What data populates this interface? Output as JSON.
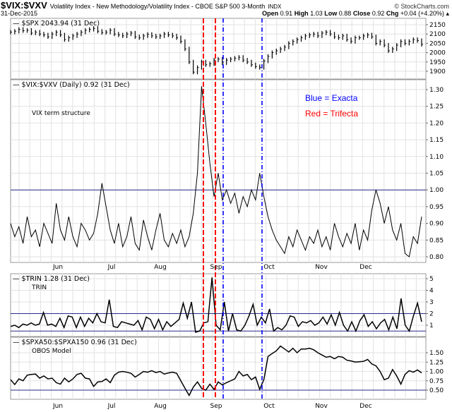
{
  "header": {
    "symbol": "$VIX:$VXV",
    "description": "Volatility Index - New Methodology/Volatility Index - CBOE S&P 500 3-Month",
    "exchange": "INDX",
    "brand": "© StockCharts.com",
    "date": "31-Dec-2015",
    "open_label": "Open",
    "open": "0.91",
    "high_label": "High",
    "high": "1.03",
    "low_label": "Low",
    "low": "0.88",
    "close_label": "Close",
    "close": "0.92",
    "chg_label": "Chg",
    "chg": "+0.04 (+4.20%)"
  },
  "colors": {
    "price": "#000000",
    "reference_line": "#2a2a8a",
    "trifecta": "#ff0000",
    "exacta": "#0000ff",
    "grid": "#e2e2e2"
  },
  "annotations": {
    "blue": "Blue = Exacta",
    "red": "Red = Trifecta"
  },
  "months": [
    "Jun",
    "Jul",
    "Aug",
    "Sep",
    "Oct",
    "Nov",
    "Dec"
  ],
  "chart_data": [
    {
      "type": "line",
      "panel": "spx",
      "legend": "$SPX 2043.94 (31 Dec)",
      "ylim": [
        1880,
        2160
      ],
      "yticks": [
        "2150",
        "2100",
        "2050",
        "2000",
        "1950",
        "1900"
      ],
      "values": [
        2110,
        2115,
        2125,
        2118,
        2120,
        2105,
        2110,
        2100,
        2095,
        2085,
        2100,
        2110,
        2095,
        2070,
        2080,
        2090,
        2100,
        2110,
        2120,
        2125,
        2130,
        2115,
        2108,
        2110,
        2120,
        2100,
        2095,
        2090,
        2100,
        2105,
        2085,
        2080,
        2090,
        2098,
        2090,
        2085,
        2090,
        2100,
        2095,
        2090,
        2080,
        2060,
        2020,
        1950,
        1895,
        1920,
        1950,
        1935,
        1940,
        1960,
        1965,
        1945,
        1960,
        1965,
        1970,
        1975,
        1960,
        1950,
        1935,
        1925,
        1920,
        1955,
        1980,
        2000,
        2010,
        2020,
        2030,
        2050,
        2060,
        2070,
        2080,
        2090,
        2095,
        2100,
        2090,
        2105,
        2110,
        2100,
        2085,
        2080,
        2090,
        2070,
        2060,
        2080,
        2080,
        2090,
        2095,
        2085,
        2050,
        2060,
        2040,
        2010,
        2020,
        2040,
        2060,
        2050,
        2060,
        2070,
        2065,
        2044
      ]
    },
    {
      "type": "line",
      "panel": "vix_vxv",
      "legend": "$VIX:$VXV (Daily) 0.92 (31 Dec)",
      "label": "VIX term structure",
      "ylim": [
        0.78,
        1.33
      ],
      "yticks": [
        "1.30",
        "1.25",
        "1.20",
        "1.15",
        "1.10",
        "1.05",
        "1.00",
        "0.95",
        "0.90",
        "0.85",
        "0.80"
      ],
      "reference": 1.0,
      "values": [
        0.9,
        0.86,
        0.89,
        0.84,
        0.92,
        0.86,
        0.88,
        0.83,
        0.9,
        0.87,
        0.84,
        0.96,
        0.88,
        0.85,
        0.92,
        0.86,
        0.83,
        0.9,
        0.88,
        0.85,
        0.87,
        0.93,
        1.02,
        0.95,
        0.88,
        0.84,
        0.9,
        0.83,
        0.86,
        0.92,
        0.84,
        0.82,
        0.91,
        0.86,
        0.82,
        0.88,
        0.93,
        0.85,
        0.83,
        0.87,
        0.84,
        0.88,
        0.83,
        0.86,
        0.93,
        1.05,
        1.31,
        1.2,
        1.08,
        0.98,
        1.05,
        0.97,
        1.0,
        0.96,
        0.99,
        0.93,
        0.98,
        0.95,
        1.0,
        0.97,
        1.05,
        0.98,
        0.92,
        0.88,
        0.85,
        0.83,
        0.81,
        0.86,
        0.83,
        0.88,
        0.85,
        0.82,
        0.86,
        0.84,
        0.88,
        0.83,
        0.86,
        0.82,
        0.9,
        0.86,
        0.83,
        0.87,
        0.84,
        0.9,
        0.82,
        0.88,
        0.85,
        0.94,
        1.0,
        0.96,
        0.9,
        0.95,
        0.88,
        0.85,
        0.9,
        0.81,
        0.8,
        0.86,
        0.84,
        0.92
      ]
    },
    {
      "type": "line",
      "panel": "trin",
      "legend": "$TRIN 1.28 (31 Dec)",
      "label": "TRIN",
      "ylim": [
        0,
        5.3
      ],
      "yticks": [
        "5",
        "4",
        "3",
        "2",
        "1"
      ],
      "reference": [
        2,
        0.5
      ],
      "values": [
        0.9,
        1.0,
        0.8,
        1.1,
        1.0,
        1.2,
        1.0,
        1.1,
        2.1,
        1.0,
        1.1,
        0.9,
        1.6,
        0.8,
        1.8,
        1.7,
        0.8,
        1.7,
        0.9,
        1.6,
        1.2,
        2.0,
        1.3,
        1.2,
        3.2,
        0.9,
        0.8,
        1.3,
        1.2,
        1.1,
        1.0,
        1.4,
        0.6,
        1.7,
        1.5,
        0.7,
        1.5,
        0.6,
        1.3,
        0.9,
        1.2,
        1.5,
        2.9,
        1.6,
        3.0,
        0.4,
        0.5,
        1.2,
        1.3,
        5.1,
        1.0,
        0.6,
        3.0,
        0.5,
        2.0,
        0.6,
        0.5,
        1.0,
        1.8,
        2.8,
        1.0,
        1.7,
        1.2,
        2.4,
        0.5,
        0.8,
        0.6,
        1.0,
        1.8,
        1.7,
        0.9,
        1.3,
        1.2,
        1.4,
        1.0,
        1.2,
        1.7,
        1.1,
        1.9,
        1.0,
        2.1,
        1.0,
        0.5,
        1.3,
        0.5,
        1.4,
        1.9,
        0.9,
        1.3,
        0.7,
        1.2,
        1.5,
        0.6,
        1.7,
        0.7,
        3.3,
        1.0,
        0.5,
        1.8,
        2.9,
        1.3
      ]
    },
    {
      "type": "line",
      "panel": "obos",
      "legend": "$SPXA50:$SPXA150 0.96 (31 Dec)",
      "label": "OBOS Model",
      "ylim": [
        0.3,
        1.75
      ],
      "yticks": [
        "1.50",
        "1.25",
        "1.00",
        "0.75",
        "0.50"
      ],
      "reference": 0.5,
      "values": [
        0.78,
        0.65,
        0.8,
        0.75,
        0.9,
        0.92,
        0.93,
        0.82,
        0.88,
        0.8,
        0.82,
        0.7,
        0.66,
        0.82,
        0.72,
        0.8,
        0.92,
        0.95,
        0.82,
        0.8,
        0.6,
        0.72,
        0.73,
        0.8,
        0.7,
        0.9,
        0.98,
        1.0,
        0.98,
        0.95,
        0.85,
        0.92,
        1.0,
        0.98,
        1.02,
        0.97,
        1.0,
        0.93,
        0.96,
        0.98,
        0.95,
        0.75,
        0.55,
        0.36,
        0.58,
        0.72,
        0.55,
        0.5,
        0.66,
        0.52,
        0.72,
        0.64,
        0.7,
        0.75,
        0.8,
        1.0,
        0.88,
        0.92,
        0.78,
        0.85,
        0.52,
        0.78,
        1.4,
        1.48,
        1.55,
        1.68,
        1.6,
        1.52,
        1.62,
        1.5,
        1.6,
        1.6,
        1.62,
        1.58,
        1.5,
        1.44,
        1.38,
        1.4,
        1.34,
        1.4,
        1.38,
        1.3,
        1.28,
        1.25,
        1.26,
        1.27,
        1.32,
        1.2,
        1.15,
        1.0,
        0.78,
        0.82,
        1.05,
        0.88,
        0.66,
        0.92,
        1.02,
        0.98,
        1.04,
        0.96
      ]
    }
  ]
}
